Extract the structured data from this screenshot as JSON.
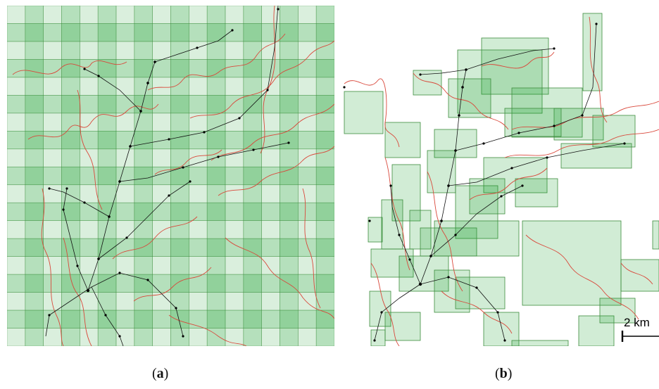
{
  "panels": {
    "a": {
      "caption_open": "(",
      "caption_letter": "a",
      "caption_close": ")"
    },
    "b": {
      "caption_open": "(",
      "caption_letter": "b",
      "caption_close": ")",
      "scale_bar_label": "2 km"
    }
  },
  "colors": {
    "cell_fill": "#1a9e2e",
    "cell_stroke": "#3d8c3d",
    "route_line": "#d9483b",
    "network_line": "#111111",
    "node": "#000000"
  },
  "grid": {
    "columns": 18,
    "rows": 19,
    "cell_opacity_base": 0.16
  }
}
